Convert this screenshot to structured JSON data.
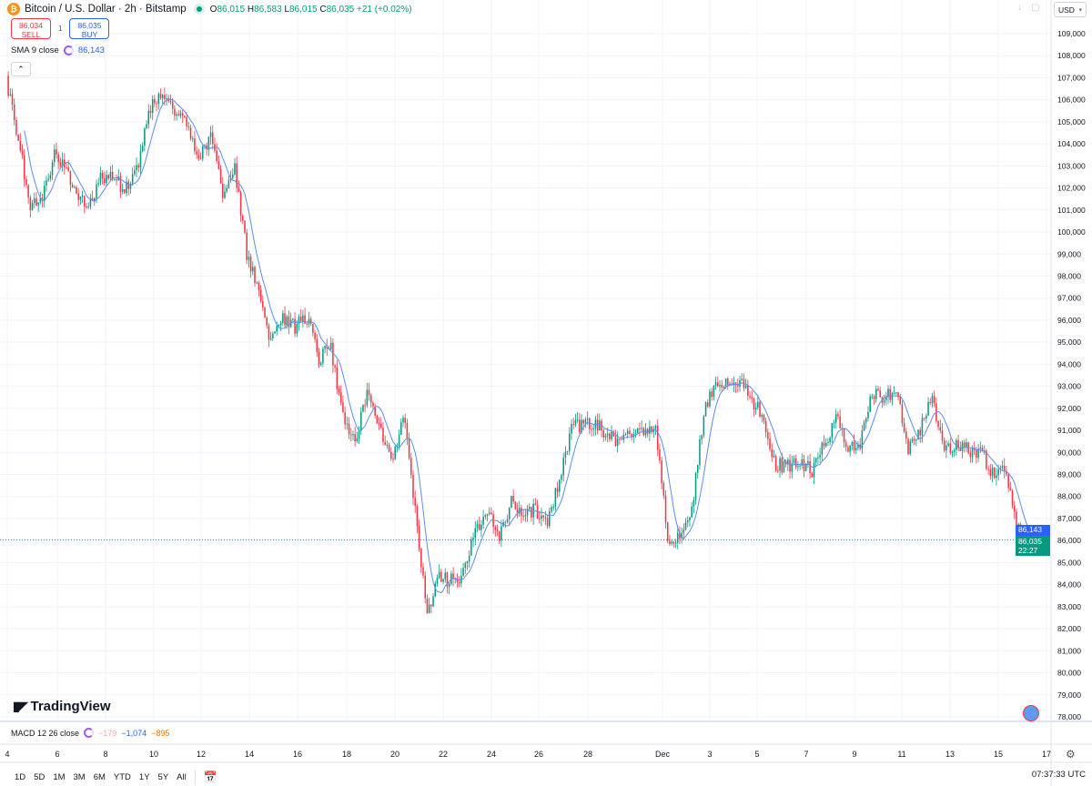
{
  "header": {
    "symbol": "Bitcoin / U.S. Dollar · 2h · Bitstamp",
    "coin_icon": "bitcoin-icon",
    "market_status": "open",
    "open_label": "O",
    "open": "86,015",
    "high_label": "H",
    "high": "86,583",
    "low_label": "L",
    "low": "86,015",
    "close_label": "C",
    "close": "86,035",
    "change": "+21 (+0.02%)"
  },
  "trade": {
    "sell_price": "86,034",
    "sell_label": "SELL",
    "spread": "1",
    "buy_price": "86,035",
    "buy_label": "BUY"
  },
  "indicators": {
    "sma_label": "SMA 9 close",
    "sma_value": "86,143",
    "macd_label": "MACD 12 26 close",
    "macd_hist": "−179",
    "macd_line": "−1,074",
    "macd_signal": "−895"
  },
  "currency": "USD",
  "branding": "TradingView",
  "price_tags": {
    "sma": "86,143",
    "last": "86,035",
    "countdown": "22:27"
  },
  "ranges": [
    "1D",
    "5D",
    "1M",
    "3M",
    "6M",
    "YTD",
    "1Y",
    "5Y",
    "All"
  ],
  "clock": "07:37:33 UTC",
  "colors": {
    "up": "#089981",
    "down": "#f23645",
    "sma": "#5b8def",
    "grid": "#f0f3fa"
  },
  "chart_data": {
    "type": "candlestick",
    "title": "Bitcoin / U.S. Dollar · 2h · Bitstamp",
    "start": "Nov 4",
    "sample_interval": "12h",
    "closes": [
      106800,
      104200,
      101100,
      101600,
      103400,
      102800,
      101600,
      101300,
      102600,
      102300,
      102000,
      103200,
      105600,
      106400,
      105500,
      105100,
      103100,
      104500,
      101800,
      103000,
      99000,
      97400,
      95000,
      96000,
      95700,
      96100,
      94300,
      94700,
      91700,
      90600,
      92500,
      91300,
      89400,
      91700,
      87500,
      82500,
      84300,
      84200,
      84500,
      86400,
      87200,
      86200,
      87800,
      87200,
      87400,
      86900,
      88800,
      91200,
      91150,
      91300,
      90700,
      90550,
      90800,
      91100,
      91100,
      86200,
      86000,
      87200,
      91800,
      93200,
      93000,
      93200,
      92400,
      91500,
      89400,
      89400,
      89400,
      89200,
      90300,
      91500,
      90300,
      90300,
      92600,
      92400,
      92800,
      90100,
      91100,
      92400,
      90200,
      90300,
      90100,
      90100,
      89000,
      89400,
      86500,
      86035
    ],
    "overlay": "SMA 9 close",
    "last_price": 86035,
    "ylim": [
      78000,
      109000
    ],
    "y_ticks": [
      "109,000",
      "108,000",
      "107,000",
      "106,000",
      "105,000",
      "104,000",
      "103,000",
      "102,000",
      "101,000",
      "100,000",
      "99,000",
      "98,000",
      "97,000",
      "96,000",
      "95,000",
      "94,000",
      "93,000",
      "92,000",
      "91,000",
      "90,000",
      "89,000",
      "88,000",
      "87,000",
      "86,000",
      "85,000",
      "84,000",
      "83,000",
      "82,000",
      "81,000",
      "80,000",
      "79,000",
      "78,000"
    ],
    "x_ticks": [
      "4",
      "6",
      "8",
      "10",
      "12",
      "14",
      "16",
      "18",
      "20",
      "22",
      "24",
      "26",
      "28",
      "Dec",
      "3",
      "5",
      "7",
      "9",
      "11",
      "13",
      "15",
      "17"
    ],
    "grid": true
  }
}
